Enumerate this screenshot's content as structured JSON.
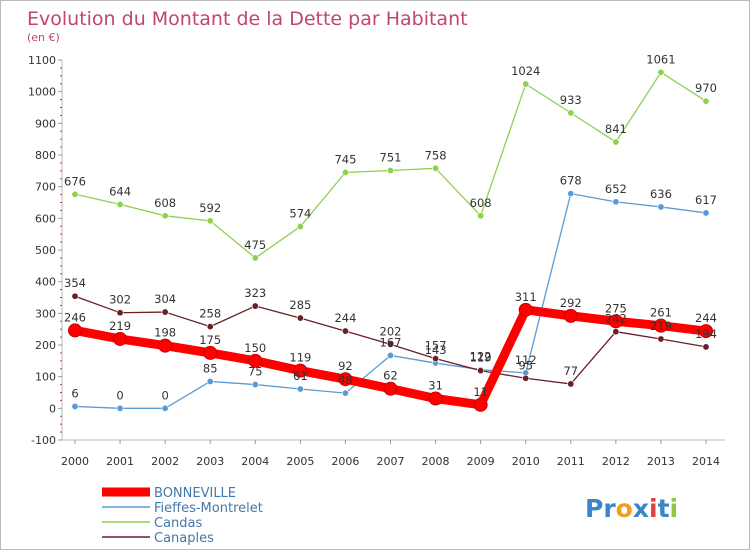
{
  "chart_data": {
    "type": "line",
    "title": "Evolution du Montant de la Dette par Habitant",
    "subtitle": "(en €)",
    "x": [
      "2000",
      "2001",
      "2002",
      "2003",
      "2004",
      "2005",
      "2006",
      "2007",
      "2008",
      "2009",
      "2010",
      "2011",
      "2012",
      "2013",
      "2014"
    ],
    "ylim": [
      -100,
      1100
    ],
    "yticks": [
      -100,
      0,
      100,
      200,
      300,
      400,
      500,
      600,
      700,
      800,
      900,
      1000,
      1100
    ],
    "grid": false,
    "legend_position": "bottom-left",
    "series": [
      {
        "name": "BONNEVILLE",
        "color": "#ff0000",
        "values": [
          246,
          219,
          198,
          175,
          150,
          119,
          92,
          62,
          31,
          11,
          311,
          292,
          275,
          261,
          244
        ],
        "labels": [
          "246",
          "219",
          "198",
          "175",
          "150",
          "119",
          "92",
          "62",
          "31",
          "11",
          "311",
          "292",
          "275",
          "261",
          "244"
        ]
      },
      {
        "name": "Fieffes-Montrelet",
        "color": "#5b9bd5",
        "values": [
          6,
          0,
          0,
          85,
          75,
          61,
          48,
          167,
          143,
          122,
          112,
          678,
          652,
          636,
          617
        ],
        "labels": [
          "6",
          "0",
          "0",
          "85",
          "75",
          "61",
          "48",
          "167",
          "143",
          "122",
          "112",
          "678",
          "652",
          "636",
          "617"
        ]
      },
      {
        "name": "Candas",
        "color": "#8fd14f",
        "values": [
          676,
          644,
          608,
          592,
          475,
          574,
          745,
          751,
          758,
          608,
          1024,
          933,
          841,
          1061,
          970
        ],
        "labels": [
          "676",
          "644",
          "608",
          "592",
          "475",
          "574",
          "745",
          "751",
          "758",
          "608",
          "1024",
          "933",
          "841",
          "1061",
          "970"
        ]
      },
      {
        "name": "Canaples",
        "color": "#6b1e23",
        "values": [
          354,
          302,
          304,
          258,
          323,
          285,
          244,
          202,
          157,
          119,
          95,
          77,
          242,
          219,
          194
        ],
        "labels": [
          "354",
          "302",
          "304",
          "258",
          "323",
          "285",
          "244",
          "202",
          "157",
          "119",
          "95",
          "77",
          "242",
          "219",
          "194"
        ]
      }
    ]
  },
  "logo": {
    "text": "Proxiti"
  }
}
